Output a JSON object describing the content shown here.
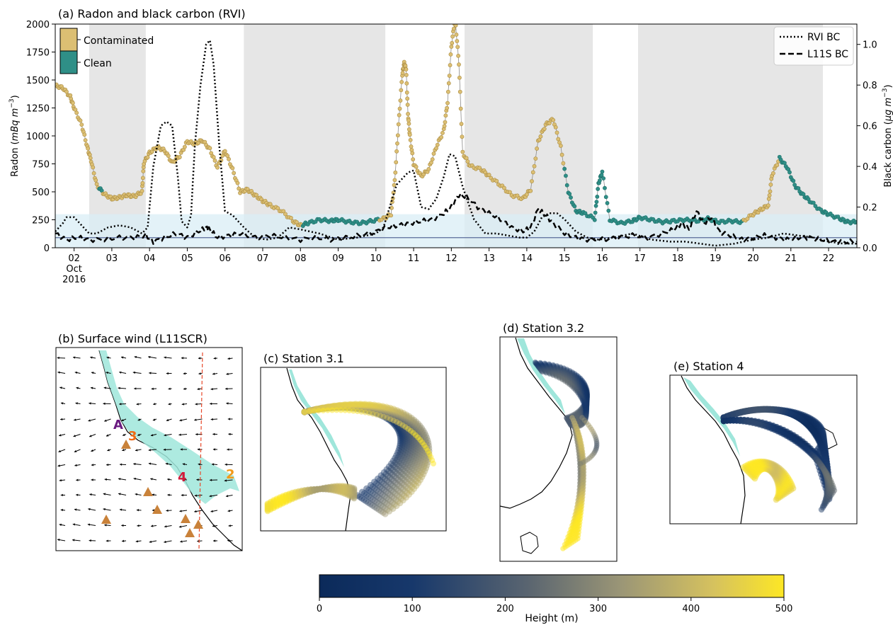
{
  "figure": {
    "panel_a_title": "(a) Radon and black carbon (RVI)",
    "panel_b_title": "(b) Surface wind (L11SCR)",
    "panel_c_title": "(c) Station 3.1",
    "panel_d_title": "(d) Station 3.2",
    "panel_e_title": "(e) Station 4",
    "map_labels": {
      "a": "A",
      "three": "3",
      "four": "4",
      "two": "2"
    },
    "colorbar": {
      "label": "Height (m)",
      "ticks": [
        "0",
        "100",
        "200",
        "300",
        "400",
        "500"
      ],
      "cmap": [
        "#0b2a5a",
        "#17386b",
        "#5a6570",
        "#9b9676",
        "#d6c25e",
        "#fde725"
      ]
    }
  },
  "colors": {
    "contaminated": "#dcbf73",
    "clean": "#2f8f87",
    "shade": "#e6e6e6",
    "clean_band": "#d9edf5",
    "baseline": "#5a6b9a",
    "land_fill": "#9fe6db",
    "marker": "#c9823a"
  },
  "chart_data": {
    "type": "line",
    "title": "(a) Radon and black carbon (RVI)",
    "ylabel": "Radon (mBq m⁻³)",
    "y2label": "Black carbon (µg m⁻³)",
    "xlim": [
      1.5,
      22.75
    ],
    "ylim": [
      0,
      2000
    ],
    "y2lim": [
      0,
      1.1
    ],
    "x_ticks": [
      2,
      3,
      4,
      5,
      6,
      7,
      8,
      9,
      10,
      11,
      12,
      13,
      14,
      15,
      16,
      17,
      18,
      19,
      20,
      21,
      22
    ],
    "x_tick_labels": [
      "02",
      "03",
      "04",
      "05",
      "06",
      "07",
      "08",
      "09",
      "10",
      "11",
      "12",
      "13",
      "14",
      "15",
      "16",
      "17",
      "18",
      "19",
      "20",
      "21",
      "22"
    ],
    "x_sublabel_1": "Oct",
    "x_sublabel_2": "2016",
    "y_ticks": [
      0,
      250,
      500,
      750,
      1000,
      1250,
      1500,
      1750,
      2000
    ],
    "y_tick_labels": [
      "0",
      "250",
      "500",
      "750",
      "1000",
      "1250",
      "1500",
      "1750",
      "2000"
    ],
    "y2_ticks": [
      0.0,
      0.2,
      0.4,
      0.6,
      0.8,
      1.0
    ],
    "y2_tick_labels": [
      "0.0",
      "0.2",
      "0.4",
      "0.6",
      "0.8",
      "1.0"
    ],
    "shaded_periods": [
      [
        2.4,
        3.9
      ],
      [
        6.5,
        10.25
      ],
      [
        12.35,
        15.75
      ],
      [
        16.95,
        21.85
      ]
    ],
    "clean_band": [
      0,
      300
    ],
    "baseline": 90,
    "legend_left": [
      {
        "name": "Contaminated",
        "key": "contaminated"
      },
      {
        "name": "Clean",
        "key": "clean"
      }
    ],
    "legend_right": [
      {
        "name": "RVI BC",
        "style": "dotted"
      },
      {
        "name": "L11S BC",
        "style": "dashed"
      }
    ],
    "radon": {
      "x": [
        1.5,
        1.7,
        1.9,
        2.0,
        2.2,
        2.35,
        2.45,
        2.6,
        2.8,
        3.0,
        3.2,
        3.4,
        3.6,
        3.8,
        3.85,
        4.0,
        4.2,
        4.4,
        4.6,
        4.8,
        5.0,
        5.2,
        5.4,
        5.6,
        5.8,
        6.0,
        6.2,
        6.4,
        6.6,
        6.8,
        7.0,
        7.2,
        7.5,
        7.8,
        8.0,
        8.2,
        8.5,
        8.8,
        9.0,
        9.3,
        9.6,
        9.9,
        10.2,
        10.4,
        10.5,
        10.6,
        10.7,
        10.75,
        10.8,
        10.85,
        10.9,
        11.0,
        11.2,
        11.4,
        11.6,
        11.8,
        11.9,
        12.0,
        12.1,
        12.2,
        12.3,
        12.5,
        12.8,
        13.0,
        13.3,
        13.6,
        13.9,
        14.1,
        14.3,
        14.5,
        14.7,
        14.9,
        15.1,
        15.3,
        15.5,
        15.8,
        15.9,
        16.0,
        16.2,
        16.5,
        16.8,
        17.0,
        17.3,
        17.6,
        17.9,
        18.2,
        18.5,
        18.8,
        19.1,
        19.4,
        19.7,
        20.0,
        20.2,
        20.4,
        20.5,
        20.7,
        20.9,
        21.1,
        21.3,
        21.5,
        21.8,
        22.0,
        22.3,
        22.5,
        22.75
      ],
      "y": [
        1450,
        1430,
        1350,
        1250,
        1100,
        900,
        780,
        560,
        480,
        440,
        450,
        470,
        460,
        500,
        760,
        850,
        900,
        870,
        760,
        820,
        950,
        930,
        960,
        880,
        720,
        870,
        700,
        500,
        520,
        470,
        420,
        380,
        330,
        240,
        200,
        220,
        250,
        240,
        250,
        230,
        220,
        240,
        260,
        300,
        600,
        1100,
        1550,
        1650,
        1600,
        1200,
        1000,
        750,
        640,
        700,
        900,
        1050,
        1300,
        1800,
        2050,
        1650,
        850,
        730,
        700,
        640,
        560,
        470,
        440,
        520,
        950,
        1100,
        1150,
        900,
        500,
        330,
        310,
        260,
        570,
        680,
        250,
        220,
        240,
        270,
        250,
        230,
        240,
        250,
        240,
        260,
        230,
        240,
        230,
        300,
        340,
        380,
        650,
        800,
        720,
        560,
        480,
        420,
        330,
        300,
        260,
        230,
        230
      ],
      "clean_segments": [
        [
          8.05,
          10.05
        ],
        [
          15.0,
          19.7
        ],
        [
          20.7,
          22.75
        ]
      ],
      "clean_points": [
        2.7
      ]
    },
    "rvi_bc": {
      "x": [
        1.5,
        1.7,
        1.8,
        2.0,
        2.2,
        2.4,
        2.6,
        2.9,
        3.2,
        3.5,
        3.8,
        3.95,
        4.1,
        4.3,
        4.45,
        4.6,
        4.75,
        4.85,
        5.0,
        5.1,
        5.2,
        5.35,
        5.5,
        5.6,
        5.7,
        5.85,
        6.0,
        6.2,
        6.5,
        6.8,
        7.1,
        7.4,
        7.7,
        8.0,
        8.5,
        9.0,
        9.5,
        10.0,
        10.2,
        10.4,
        10.55,
        10.7,
        10.85,
        11.0,
        11.2,
        11.4,
        11.6,
        11.8,
        11.95,
        12.1,
        12.3,
        12.6,
        12.9,
        13.2,
        13.5,
        13.8,
        14.0,
        14.2,
        14.4,
        14.6,
        14.8,
        15.0,
        15.3,
        15.6,
        15.9,
        16.3,
        16.8,
        17.3,
        17.8,
        18.2,
        18.6,
        19.0,
        19.5,
        20.0,
        20.4,
        20.8,
        21.2,
        21.6,
        22.0,
        22.4,
        22.75
      ],
      "y": [
        0.08,
        0.12,
        0.15,
        0.15,
        0.11,
        0.07,
        0.07,
        0.1,
        0.11,
        0.1,
        0.07,
        0.1,
        0.4,
        0.6,
        0.62,
        0.6,
        0.35,
        0.13,
        0.1,
        0.16,
        0.5,
        0.8,
        1.0,
        1.02,
        0.9,
        0.5,
        0.18,
        0.16,
        0.1,
        0.05,
        0.04,
        0.05,
        0.1,
        0.09,
        0.07,
        0.04,
        0.05,
        0.07,
        0.1,
        0.22,
        0.31,
        0.34,
        0.37,
        0.38,
        0.2,
        0.19,
        0.24,
        0.35,
        0.46,
        0.45,
        0.3,
        0.14,
        0.07,
        0.07,
        0.06,
        0.05,
        0.05,
        0.08,
        0.15,
        0.17,
        0.17,
        0.14,
        0.08,
        0.05,
        0.04,
        0.05,
        0.07,
        0.04,
        0.03,
        0.03,
        0.02,
        0.01,
        0.02,
        0.04,
        0.05,
        0.07,
        0.06,
        0.05,
        0.03,
        0.02,
        0.02
      ]
    },
    "l11s_bc": {
      "x": [
        1.5,
        1.8,
        2.1,
        2.4,
        2.8,
        3.2,
        3.6,
        3.9,
        4.1,
        4.4,
        4.7,
        5.0,
        5.3,
        5.5,
        5.6,
        5.8,
        6.1,
        6.4,
        6.8,
        7.2,
        7.6,
        8.0,
        8.4,
        8.8,
        9.2,
        9.6,
        10.0,
        10.3,
        10.6,
        10.9,
        11.2,
        11.5,
        11.8,
        12.0,
        12.2,
        12.4,
        12.7,
        13.0,
        13.3,
        13.6,
        13.9,
        14.1,
        14.3,
        14.5,
        14.7,
        15.0,
        15.3,
        15.6,
        16.0,
        16.4,
        16.8,
        17.2,
        17.6,
        17.9,
        18.1,
        18.3,
        18.5,
        18.7,
        18.9,
        19.1,
        19.4,
        19.7,
        20.0,
        20.3,
        20.6,
        20.9,
        21.2,
        21.5,
        21.8,
        22.1,
        22.4,
        22.75
      ],
      "y": [
        0.07,
        0.04,
        0.05,
        0.04,
        0.04,
        0.05,
        0.05,
        0.06,
        0.03,
        0.05,
        0.07,
        0.05,
        0.08,
        0.1,
        0.09,
        0.05,
        0.06,
        0.07,
        0.05,
        0.06,
        0.05,
        0.04,
        0.05,
        0.04,
        0.05,
        0.06,
        0.08,
        0.1,
        0.11,
        0.12,
        0.13,
        0.14,
        0.17,
        0.2,
        0.26,
        0.25,
        0.2,
        0.17,
        0.14,
        0.1,
        0.08,
        0.1,
        0.19,
        0.16,
        0.12,
        0.07,
        0.05,
        0.04,
        0.04,
        0.05,
        0.06,
        0.05,
        0.07,
        0.09,
        0.12,
        0.09,
        0.18,
        0.12,
        0.15,
        0.08,
        0.06,
        0.04,
        0.05,
        0.06,
        0.05,
        0.04,
        0.05,
        0.05,
        0.04,
        0.03,
        0.03,
        0.03
      ]
    }
  }
}
